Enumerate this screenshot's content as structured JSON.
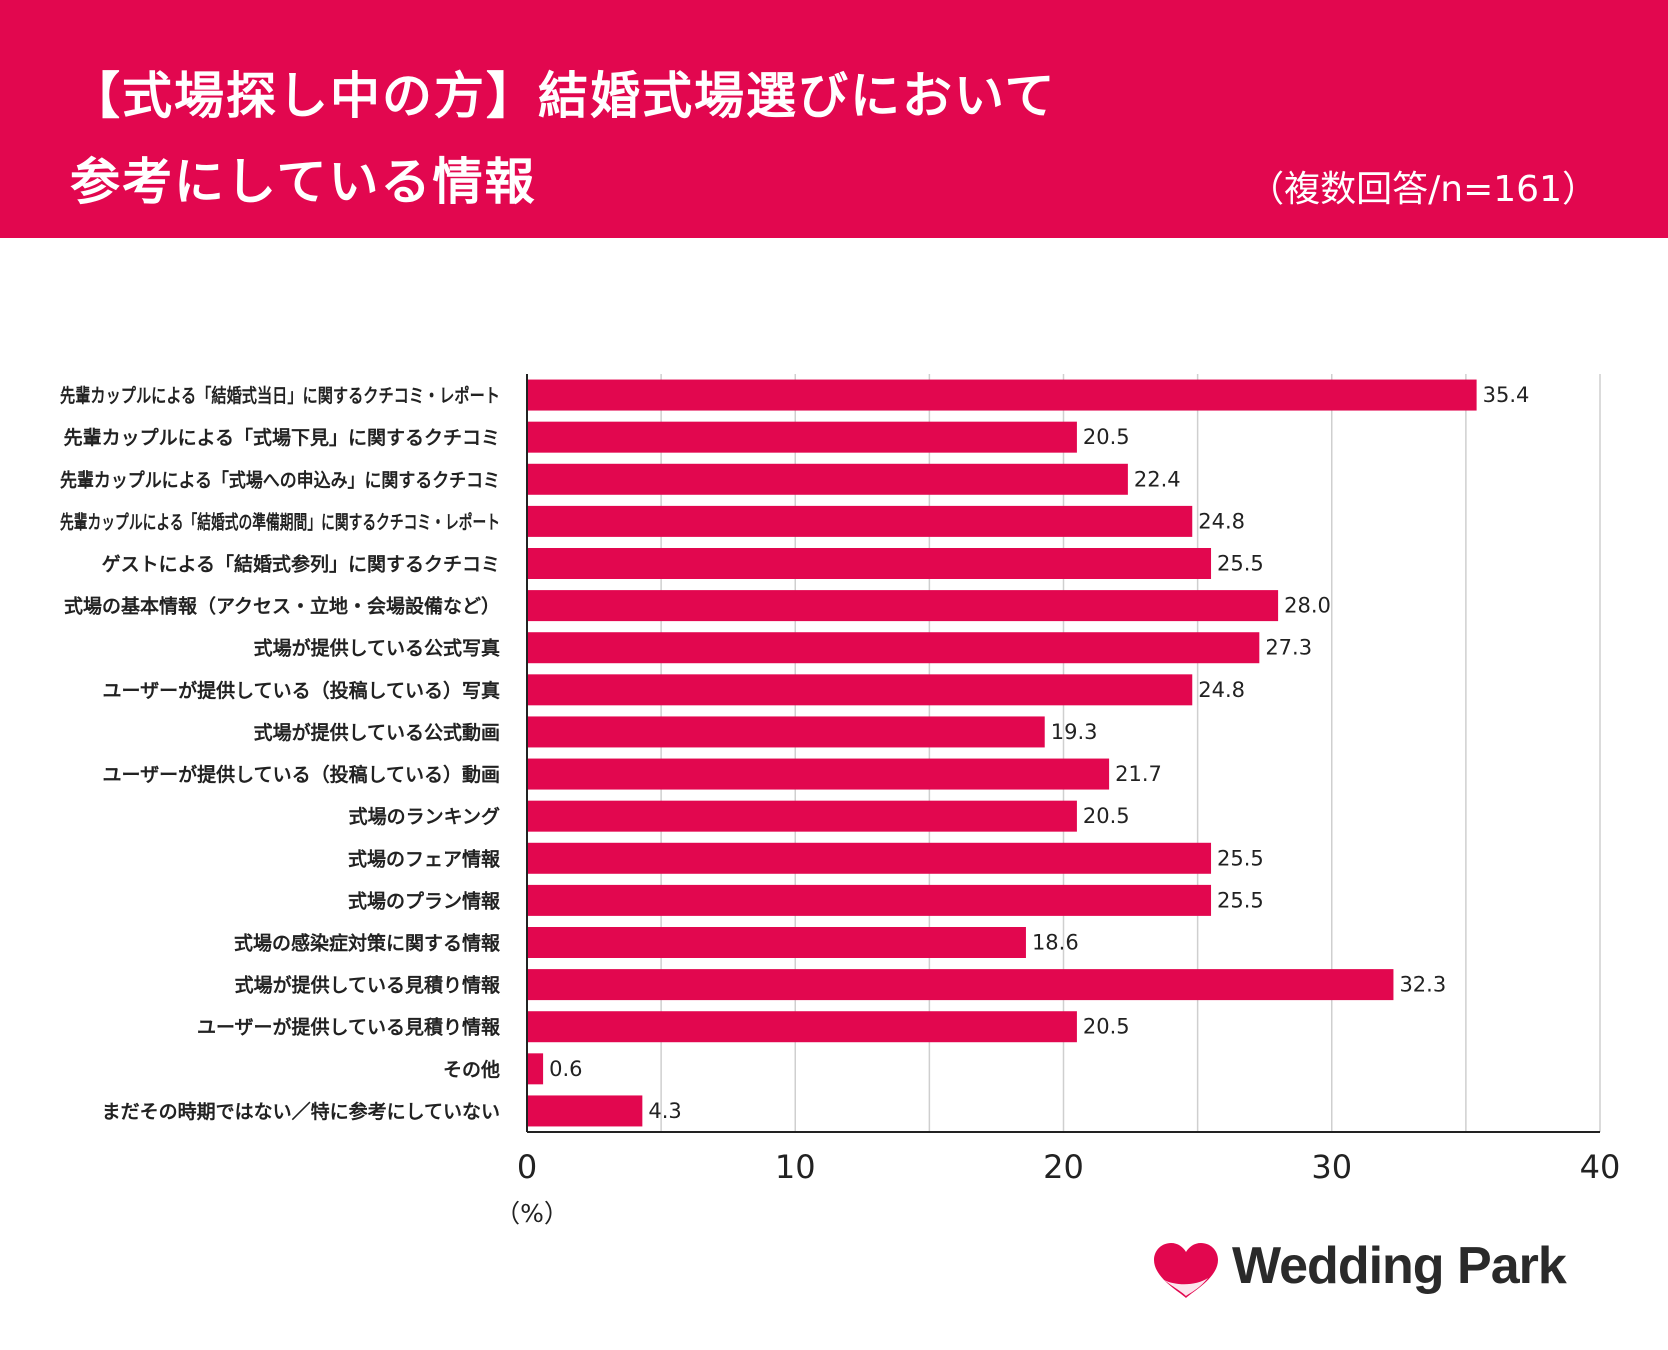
{
  "header": {
    "title_line1": "【式場探し中の方】結婚式場選びにおいて",
    "title_line2": "参考にしている情報",
    "subtitle": "（複数回答/n=161）"
  },
  "brand": {
    "name": "Wedding Park",
    "color": "#e2074f"
  },
  "chart_data": {
    "type": "bar",
    "orientation": "horizontal",
    "title": "【式場探し中の方】結婚式場選びにおいて参考にしている情報",
    "xlabel": "（%）",
    "xlim": [
      0,
      40
    ],
    "xticks": [
      0,
      10,
      20,
      30,
      40
    ],
    "grid": true,
    "bar_color": "#e2074f",
    "categories": [
      "先輩カップルによる「結婚式当日」に関するクチコミ・レポート",
      "先輩カップルによる「式場下見」に関するクチコミ",
      "先輩カップルによる「式場への申込み」に関するクチコミ",
      "先輩カップルによる「結婚式の準備期間」に関するクチコミ・レポート",
      "ゲストによる「結婚式参列」に関するクチコミ",
      "式場の基本情報（アクセス・立地・会場設備など）",
      "式場が提供している公式写真",
      "ユーザーが提供している（投稿している）写真",
      "式場が提供している公式動画",
      "ユーザーが提供している（投稿している）動画",
      "式場のランキング",
      "式場のフェア情報",
      "式場のプラン情報",
      "式場の感染症対策に関する情報",
      "式場が提供している見積り情報",
      "ユーザーが提供している見積り情報",
      "その他",
      "まだその時期ではない／特に参考にしていない"
    ],
    "values": [
      35.4,
      20.5,
      22.4,
      24.8,
      25.5,
      28.0,
      27.3,
      24.8,
      19.3,
      21.7,
      20.5,
      25.5,
      25.5,
      18.6,
      32.3,
      20.5,
      0.6,
      4.3
    ],
    "value_labels": [
      "35.4",
      "20.5",
      "22.4",
      "24.8",
      "25.5",
      "28.0",
      "27.3",
      "24.8",
      "19.3",
      "21.7",
      "20.5",
      "25.5",
      "25.5",
      "18.6",
      "32.3",
      "20.5",
      "0.6",
      "4.3"
    ]
  }
}
